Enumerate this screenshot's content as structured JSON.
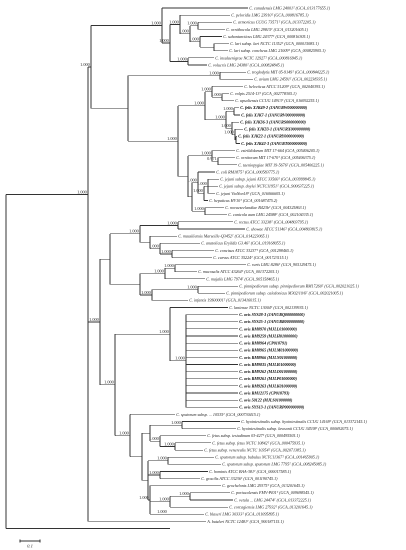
{
  "taxa": [
    {
      "label": "C. canadensis LMG 24001ᵀ (GCA_013177655.1)",
      "bold": false
    },
    {
      "label": "C. peloridis LMG 23910ᵀ (GCA_000816785.1)",
      "bold": false
    },
    {
      "label": "C. armoricus CCUG 73571ᵀ (GCA_013372205.1)",
      "bold": false
    },
    {
      "label": "C. ornithocola LMG 29815ᵀ (GCA_013201605.1)",
      "bold": false
    },
    {
      "label": "C. subantarcticus LMG 24377ᵀ (GCA_000816305.1)",
      "bold": false
    },
    {
      "label": "C. lari subsp. lari NCTC 11352ᵀ (GCA_000015085.1)",
      "bold": false
    },
    {
      "label": "C. lari subsp. concheus LMG 21009ᵀ (GCA_000825905.1)",
      "bold": false
    },
    {
      "label": "C. insulaenigrae NCTC 12927ᵀ (GCA_000816945.1)",
      "bold": false
    },
    {
      "label": "C. volucris LMG 24380ᵀ (GCA_000824845.1)",
      "bold": false
    },
    {
      "label": "C. troglodytis MIT 05-9149ᵀ (GCA_000844225.1)",
      "bold": false
    },
    {
      "label": "C. avium LMG 24591ᵀ (GCA_002238335.1)",
      "bold": false
    },
    {
      "label": "C. helveticus ATCC 51209ᵀ (GCA_002040395.1)",
      "bold": false
    },
    {
      "label": "C. volpis 2514-13ᵀ (GCA_002778305.1)",
      "bold": false
    },
    {
      "label": "C. upsaliensis CCUG 14913ᵀ (GCA_016092255.1)",
      "bold": false
    },
    {
      "label": "C. felis XJK49-2 (JANURW000000000)",
      "bold": true
    },
    {
      "label": "C. felis XJK7-1 (JANURV000000000)",
      "bold": true
    },
    {
      "label": "C. felis XJK36-3 (JANURS000000000)",
      "bold": true
    },
    {
      "label": "C. felis XJK33-1 (JANURX000000000)",
      "bold": true
    },
    {
      "label": "C. felis XJK22-1 (JANURY000000000)",
      "bold": true
    },
    {
      "label": "C. felis XJK42-3 (JANURT000000000)",
      "bold": true
    },
    {
      "label": "C. estrildidarum MIT 17-664 (GCA_005406205.1)",
      "bold": false
    },
    {
      "label": "C. ornitorum MIT 17-670ᵀ (GCA_005406375.1)",
      "bold": false
    },
    {
      "label": "C. taeniopygiae MIT 19-5676ᵀ (GCA_005406225.1)",
      "bold": false
    },
    {
      "label": "C. coli RM1875ᵀ (GCA_000583775.1)",
      "bold": false
    },
    {
      "label": "C. jejuni subsp. jejuni ATCC 33560ᵀ (GCA_003999845.1)",
      "bold": false
    },
    {
      "label": "C. jejuni subsp. doylei NCTC11951ᵀ (GCA_900637225.1)",
      "bold": false
    },
    {
      "label": "C. jejuni ViaNon18ᵀ (GCA_016066605.1)",
      "bold": false
    },
    {
      "label": "C. hepaticus HV10ᵀ (GCA_001687475.2)",
      "bold": false
    },
    {
      "label": "C. novaezeelandiae B423bᵀ (GCA_004325863.1)",
      "bold": false
    },
    {
      "label": "C. canicola aum LMG 24588ᵀ (GCA_002104335.1)",
      "bold": false
    },
    {
      "label": "C. rectus ATCC 33238ᵀ (GCA_004803795.1)",
      "bold": false
    },
    {
      "label": "C. showae ATCC 51146ᵀ (GCA_004803815.1)",
      "bold": false
    },
    {
      "label": "C. massiliensis Marseille-Q3452ᵀ (GCA_014223065.1)",
      "bold": false
    },
    {
      "label": "C. anatolicus Eryildiz G3.46ᵀ (GCA_019168055.1)",
      "bold": false
    },
    {
      "label": "C. concisus ATCC 33237ᵀ (GCA_001298465.1)",
      "bold": false
    },
    {
      "label": "C. curvus ATCC 35224ᵀ (GCA_001723115.1)",
      "bold": false
    },
    {
      "label": "C. ruris LMG 8286ᵀ (GCA_905129475.1)",
      "bold": false
    },
    {
      "label": "C. mucosalis ATCC 43264ᵀ (GCA_001372205.1)",
      "bold": false
    },
    {
      "label": "C. majalis LMG 7974ᵀ (GCA_905158465.1)",
      "bold": false
    },
    {
      "label": "C. pinnipediorum subsp. pinnipediorum RM17260ᵀ (GCA_002021025.1)",
      "bold": false
    },
    {
      "label": "C. pinnipediorum subsp. caledonicus M302/10/6ᵀ (GCA_002021005.1)",
      "bold": false
    },
    {
      "label": "C. infantis 19S00001ᵀ (GCA_013416015.1)",
      "bold": false
    },
    {
      "label": "C. lanienae NCTC 13004ᵀ (GCA_002139935.1)",
      "bold": false
    },
    {
      "label": "C. ovis SYS28-3 (JANURQ000000000)",
      "bold": true
    },
    {
      "label": "C. ovis SYS25-1 (JANURR000000000)",
      "bold": true
    },
    {
      "label": "C. ovis RM8970 (MJLL01000000)",
      "bold": true
    },
    {
      "label": "C. ovis RM9259 (MJLH01000000)",
      "bold": true
    },
    {
      "label": "C. ovis RM8964 (CP018791)",
      "bold": true
    },
    {
      "label": "C. ovis RM8965 (MJLM01000000)",
      "bold": true
    },
    {
      "label": "C. ovis RM8966 (MJLN01000000)",
      "bold": true
    },
    {
      "label": "C. ovis RM9835 (MJLI01000000)",
      "bold": true
    },
    {
      "label": "C. ovis RM9262 (MJLO01000000)",
      "bold": true
    },
    {
      "label": "C. ovis RM9261 (MJLP01000000)",
      "bold": true
    },
    {
      "label": "C. ovis RM9263 (MJLK01000000)",
      "bold": true
    },
    {
      "label": "C. ovis RM12175 (CP018793)",
      "bold": true
    },
    {
      "label": "C. ovis 50122 (MJLS01000000)",
      "bold": true
    },
    {
      "label": "C. ovis SYS13-1 (JANURP000000000)",
      "bold": true
    },
    {
      "label": "C. sputorum subsp. ... 10535ᵀ (GCA_000730415.1)",
      "bold": false
    },
    {
      "label": "C. hyointestinalis subsp. hyointestinalis CCUG 14169ᵀ (GCA_013372145.1)",
      "bold": false
    },
    {
      "label": "C. hyointestinalis subsp. lawsonii CCUG 34538ᵀ (GCA_000692075.1)",
      "bold": false
    },
    {
      "label": "C. fetus subsp. testudinum 03-427ᵀ (GCA_000495505.1)",
      "bold": false
    },
    {
      "label": "C. fetus subsp. fetus NCTC 10842ᵀ (GCA_000475935.1)",
      "bold": false
    },
    {
      "label": "C. fetus subsp. venerealis NCTC 10354ᵀ (GCA_002071385.1)",
      "bold": false
    },
    {
      "label": "C. sputorum subsp. bubulus NCTC11367ᵀ (GCA_001465905.1)",
      "bold": false
    },
    {
      "label": "C. sputorum subsp. sputorum LMG 7795ᵀ (GCA_008245085.1)",
      "bold": false
    },
    {
      "label": "C. hominis ATCC BAA-381ᵀ (GCA_000017585.1)",
      "bold": false
    },
    {
      "label": "C. gracilis ATCC 33236ᵀ (GCA_001190745.1)",
      "bold": false
    },
    {
      "label": "C. geochelonis LMG 29375ᵀ (GCA_013201645.1)",
      "bold": false
    },
    {
      "label": "C. portucalensis FMV-PI01ᵀ (GCA_009698545.1)",
      "bold": false
    },
    {
      "label": "C. vetula ... LMG 24474ᵀ (GCA_013372225.1)",
      "bold": false
    },
    {
      "label": "C. corcagiensis LMG 27932ᵀ (GCA_013201645.1)",
      "bold": false
    },
    {
      "label": "C. blaseri LMG 30333ᵀ (GCA_011095895.1)",
      "bold": false
    },
    {
      "label": "A. butzleri NCTC 12481ᵀ (GCA_900187115.1)",
      "bold": false
    }
  ],
  "bootstrap": [
    {
      "node": "root",
      "value": "1.000"
    },
    {
      "node": "lari_group",
      "value": "1.000"
    },
    {
      "node": "lari_inner",
      "value": "1.000"
    },
    {
      "node": "lari_sub",
      "value": "1.000"
    },
    {
      "node": "lari_core",
      "value": "1.000"
    },
    {
      "node": "orn_sub",
      "value": "1.000"
    },
    {
      "node": "lari_pair",
      "value": "1.000"
    },
    {
      "node": "ins_vol",
      "value": "1.000"
    },
    {
      "node": "upper_major",
      "value": "1.000"
    },
    {
      "node": "trog_avium",
      "value": "1.000"
    },
    {
      "node": "jejuni_group",
      "value": "1.000"
    },
    {
      "node": "hel_up",
      "value": "1.000"
    },
    {
      "node": "hel_vol_up",
      "value": "1.000"
    },
    {
      "node": "vol_up",
      "value": "1.000"
    },
    {
      "node": "felis",
      "value": "1.000"
    },
    {
      "node": "felis_a",
      "value": "1.000"
    },
    {
      "node": "felis_b",
      "value": "1.000"
    },
    {
      "node": "felis_c",
      "value": "1.000"
    },
    {
      "node": "estr_group",
      "value": "1.000"
    },
    {
      "node": "orn_tae",
      "value": "0.971"
    },
    {
      "node": "coli_jej",
      "value": "1.000"
    },
    {
      "node": "jej_group",
      "value": "1.000"
    },
    {
      "node": "jej_sub",
      "value": "1.000"
    },
    {
      "node": "nov_can",
      "value": "1.000"
    },
    {
      "node": "lower_major",
      "value": "1.000"
    },
    {
      "node": "rectus_group",
      "value": "1.000"
    },
    {
      "node": "rec_sho",
      "value": "1.000"
    },
    {
      "node": "conc_group",
      "value": "1.000"
    },
    {
      "node": "conc_curv",
      "value": "1.000"
    },
    {
      "node": "mucosalis_group",
      "value": "1.000"
    },
    {
      "node": "ruris_muc",
      "value": "1.000"
    },
    {
      "node": "pinn_group",
      "value": "1.000"
    },
    {
      "node": "pinn_pair",
      "value": "1.000"
    },
    {
      "node": "ovis_major",
      "value": "1.000"
    },
    {
      "node": "lan_ovis",
      "value": "1.000"
    },
    {
      "node": "ovis_clade",
      "value": "1.000"
    },
    {
      "node": "fetus_group",
      "value": "1.000"
    },
    {
      "node": "hyo_pair",
      "value": "1.000"
    },
    {
      "node": "fetus_sub",
      "value": "1.000"
    },
    {
      "node": "fetus_pair",
      "value": "1.000"
    },
    {
      "node": "sput_pair",
      "value": "1.000"
    },
    {
      "node": "hom_grac",
      "value": "1.000"
    },
    {
      "node": "geo_group",
      "value": "1.000"
    },
    {
      "node": "port_vet",
      "value": "1.000"
    },
    {
      "node": "port_pair",
      "value": "1.000"
    },
    {
      "node": "cor_bla",
      "value": "1.000"
    }
  ],
  "scale_bar": {
    "label": "0.1"
  }
}
